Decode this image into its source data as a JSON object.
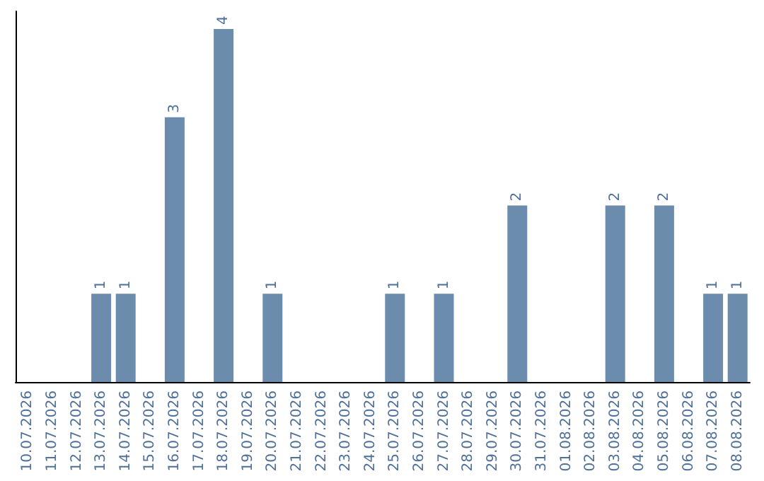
{
  "chart_data": {
    "type": "bar",
    "categories": [
      "10.07.2026",
      "11.07.2026",
      "12.07.2026",
      "13.07.2026",
      "14.07.2026",
      "15.07.2026",
      "16.07.2026",
      "17.07.2026",
      "18.07.2026",
      "19.07.2026",
      "20.07.2026",
      "21.07.2026",
      "22.07.2026",
      "23.07.2026",
      "24.07.2026",
      "25.07.2026",
      "26.07.2026",
      "27.07.2026",
      "28.07.2026",
      "29.07.2026",
      "30.07.2026",
      "31.07.2026",
      "01.08.2026",
      "02.08.2026",
      "03.08.2026",
      "04.08.2026",
      "05.08.2026",
      "06.08.2026",
      "07.08.2026",
      "08.08.2026"
    ],
    "values": [
      0,
      0,
      0,
      1,
      1,
      0,
      3,
      0,
      4,
      0,
      1,
      0,
      0,
      0,
      0,
      1,
      0,
      1,
      0,
      0,
      2,
      0,
      0,
      0,
      2,
      0,
      2,
      0,
      1,
      1
    ],
    "value_labels": [
      null,
      null,
      null,
      "1",
      "1",
      null,
      "3",
      null,
      "4",
      null,
      "1",
      null,
      null,
      null,
      null,
      "1",
      null,
      "1",
      null,
      null,
      "2",
      null,
      null,
      null,
      "2",
      null,
      "2",
      null,
      "1",
      "1"
    ],
    "color": "#6b8cac",
    "tick_labels": "x"
  }
}
